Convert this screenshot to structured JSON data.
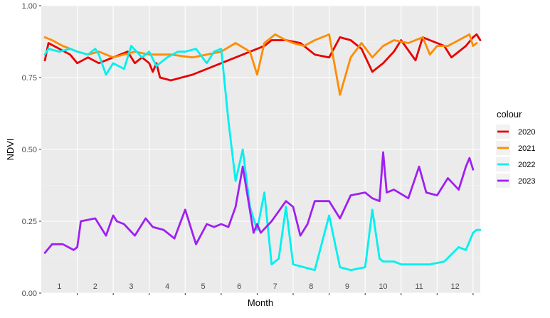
{
  "chart_data": {
    "type": "line",
    "xlabel": "Month",
    "ylabel": "NDVI",
    "xlim": [
      0,
      12.2
    ],
    "ylim": [
      0,
      1
    ],
    "y_ticks": [
      0,
      0.25,
      0.5,
      0.75,
      1
    ],
    "y_tick_labels": [
      "0.00",
      "0.25",
      "0.50",
      "0.75",
      "1.00"
    ],
    "month_labels": [
      "1",
      "2",
      "3",
      "4",
      "5",
      "6",
      "7",
      "8",
      "9",
      "10",
      "11",
      "12"
    ],
    "grid": true,
    "legend_title": "colour",
    "legend_position": "right",
    "series": [
      {
        "name": "2020",
        "color": "#e60000",
        "x": [
          0.1,
          0.2,
          0.5,
          0.8,
          1.0,
          1.3,
          1.6,
          2.0,
          2.4,
          2.6,
          2.8,
          3.0,
          3.1,
          3.2,
          3.3,
          3.6,
          4.2,
          5.0,
          5.6,
          6.2,
          6.4,
          6.8,
          7.2,
          7.6,
          8.0,
          8.3,
          8.6,
          8.9,
          9.2,
          9.5,
          9.8,
          10.0,
          10.4,
          10.6,
          10.8,
          11.2,
          11.4,
          11.6,
          11.8,
          12.0,
          12.1,
          12.2
        ],
        "y": [
          0.81,
          0.87,
          0.85,
          0.83,
          0.8,
          0.82,
          0.8,
          0.82,
          0.84,
          0.8,
          0.82,
          0.8,
          0.77,
          0.8,
          0.75,
          0.74,
          0.76,
          0.8,
          0.83,
          0.86,
          0.88,
          0.88,
          0.87,
          0.83,
          0.82,
          0.89,
          0.88,
          0.85,
          0.77,
          0.8,
          0.84,
          0.88,
          0.81,
          0.89,
          0.88,
          0.86,
          0.82,
          0.84,
          0.86,
          0.89,
          0.9,
          0.88
        ]
      },
      {
        "name": "2021",
        "color": "#ff8c00",
        "x": [
          0.1,
          0.3,
          0.6,
          1.0,
          1.3,
          1.6,
          2.0,
          2.3,
          2.6,
          3.0,
          3.6,
          4.2,
          4.6,
          5.0,
          5.4,
          5.8,
          6.0,
          6.2,
          6.5,
          6.8,
          7.0,
          7.3,
          7.6,
          8.0,
          8.3,
          8.6,
          8.9,
          9.2,
          9.5,
          9.8,
          10.2,
          10.6,
          10.8,
          11.0,
          11.3,
          11.6,
          11.9,
          12.0,
          12.1
        ],
        "y": [
          0.89,
          0.88,
          0.86,
          0.84,
          0.83,
          0.84,
          0.82,
          0.83,
          0.84,
          0.83,
          0.83,
          0.82,
          0.83,
          0.84,
          0.87,
          0.84,
          0.76,
          0.87,
          0.9,
          0.88,
          0.87,
          0.86,
          0.88,
          0.9,
          0.69,
          0.82,
          0.87,
          0.82,
          0.86,
          0.88,
          0.87,
          0.89,
          0.83,
          0.86,
          0.86,
          0.88,
          0.9,
          0.86,
          0.87
        ]
      },
      {
        "name": "2022",
        "color": "#00f0f0",
        "x": [
          0.1,
          0.2,
          0.5,
          0.8,
          1.0,
          1.3,
          1.5,
          1.6,
          1.8,
          2.0,
          2.3,
          2.5,
          2.8,
          3.0,
          3.2,
          3.5,
          3.8,
          4.0,
          4.3,
          4.6,
          4.8,
          5.0,
          5.2,
          5.4,
          5.6,
          5.8,
          6.0,
          6.2,
          6.4,
          6.6,
          6.8,
          7.0,
          7.3,
          7.6,
          8.0,
          8.3,
          8.6,
          9.0,
          9.2,
          9.4,
          9.5,
          9.6,
          9.8,
          10.0,
          10.4,
          10.8,
          11.2,
          11.6,
          11.8,
          12.0,
          12.1,
          12.2
        ],
        "y": [
          0.83,
          0.85,
          0.84,
          0.85,
          0.84,
          0.83,
          0.85,
          0.83,
          0.76,
          0.8,
          0.78,
          0.86,
          0.82,
          0.84,
          0.79,
          0.82,
          0.84,
          0.84,
          0.85,
          0.8,
          0.84,
          0.85,
          0.6,
          0.39,
          0.5,
          0.3,
          0.22,
          0.35,
          0.1,
          0.12,
          0.3,
          0.1,
          0.09,
          0.08,
          0.27,
          0.09,
          0.08,
          0.09,
          0.29,
          0.12,
          0.11,
          0.11,
          0.11,
          0.1,
          0.1,
          0.1,
          0.11,
          0.16,
          0.15,
          0.21,
          0.22,
          0.22
        ]
      },
      {
        "name": "2023",
        "color": "#a020f0",
        "x": [
          0.1,
          0.3,
          0.6,
          0.9,
          1.0,
          1.1,
          1.5,
          1.8,
          2.0,
          2.1,
          2.3,
          2.6,
          2.9,
          3.1,
          3.4,
          3.7,
          4.0,
          4.3,
          4.6,
          4.8,
          5.0,
          5.2,
          5.4,
          5.6,
          5.9,
          6.0,
          6.1,
          6.4,
          6.8,
          7.0,
          7.2,
          7.4,
          7.6,
          8.0,
          8.3,
          8.6,
          9.0,
          9.2,
          9.4,
          9.5,
          9.6,
          9.8,
          10.2,
          10.5,
          10.7,
          11.0,
          11.3,
          11.6,
          11.8,
          11.9,
          12.0
        ],
        "y": [
          0.14,
          0.17,
          0.17,
          0.15,
          0.16,
          0.25,
          0.26,
          0.2,
          0.27,
          0.25,
          0.24,
          0.2,
          0.26,
          0.23,
          0.22,
          0.19,
          0.29,
          0.17,
          0.24,
          0.23,
          0.24,
          0.23,
          0.3,
          0.44,
          0.21,
          0.24,
          0.21,
          0.25,
          0.32,
          0.3,
          0.2,
          0.24,
          0.32,
          0.32,
          0.26,
          0.34,
          0.35,
          0.33,
          0.32,
          0.49,
          0.35,
          0.36,
          0.33,
          0.44,
          0.35,
          0.34,
          0.4,
          0.36,
          0.44,
          0.47,
          0.43
        ]
      }
    ]
  }
}
